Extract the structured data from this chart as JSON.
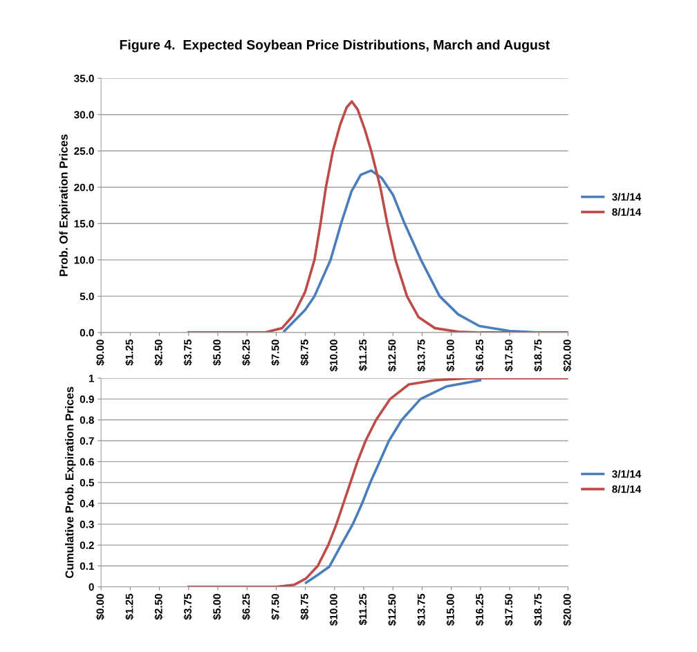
{
  "chart_data": [
    {
      "type": "line",
      "title": "Figure 4.  Expected Soybean Price Distributions, March and August",
      "ylabel": "Prob. Of Expiration Prices",
      "xlim": [
        0,
        20
      ],
      "xticks": [
        {
          "value": 0,
          "label": "$0.00"
        },
        {
          "value": 1.25,
          "label": "$1.25"
        },
        {
          "value": 2.5,
          "label": "$2.50"
        },
        {
          "value": 3.75,
          "label": "$3.75"
        },
        {
          "value": 5,
          "label": "$5.00"
        },
        {
          "value": 6.25,
          "label": "$6.25"
        },
        {
          "value": 7.5,
          "label": "$7.50"
        },
        {
          "value": 8.75,
          "label": "$8.75"
        },
        {
          "value": 10,
          "label": "$10.00"
        },
        {
          "value": 11.25,
          "label": "$11.25"
        },
        {
          "value": 12.5,
          "label": "$12.50"
        },
        {
          "value": 13.75,
          "label": "$13.75"
        },
        {
          "value": 15,
          "label": "$15.00"
        },
        {
          "value": 16.25,
          "label": "$16.25"
        },
        {
          "value": 17.5,
          "label": "$17.50"
        },
        {
          "value": 18.75,
          "label": "$18.75"
        },
        {
          "value": 20,
          "label": "$20.00"
        }
      ],
      "ylim": [
        0,
        35
      ],
      "yticks": [
        {
          "value": 0,
          "label": "0.0"
        },
        {
          "value": 5,
          "label": "5.0"
        },
        {
          "value": 10,
          "label": "10.0"
        },
        {
          "value": 15,
          "label": "15.0"
        },
        {
          "value": 20,
          "label": "20.0"
        },
        {
          "value": 25,
          "label": "25.0"
        },
        {
          "value": 30,
          "label": "30.0"
        },
        {
          "value": 35,
          "label": "35.0"
        }
      ],
      "grid": "y",
      "legend": "right",
      "marker": "none",
      "line_style": "solid",
      "series": [
        {
          "name": "3/1/14",
          "color": "#4a7ebb",
          "x": [
            7.85,
            8.74,
            9.14,
            9.83,
            10.28,
            10.72,
            11.12,
            11.57,
            12.01,
            12.51,
            13.0,
            13.7,
            14.5,
            15.29,
            16.2,
            17.5,
            18.75,
            20
          ],
          "values": [
            0.2,
            3.1,
            5,
            10,
            15,
            19.4,
            21.7,
            22.3,
            21.3,
            18.9,
            15,
            10,
            5,
            2.5,
            0.9,
            0.2,
            0,
            0
          ]
        },
        {
          "name": "8/1/14",
          "color": "#be4b48",
          "x": [
            3.75,
            5,
            6.25,
            7.0,
            7.75,
            8.24,
            8.74,
            9.14,
            9.4,
            9.63,
            9.93,
            10.23,
            10.52,
            10.74,
            10.99,
            11.3,
            11.57,
            11.96,
            12.26,
            12.61,
            13.1,
            13.6,
            14.3,
            15.29,
            16.25,
            20
          ],
          "values": [
            0,
            0,
            0,
            0,
            0.6,
            2.4,
            5.6,
            10,
            15,
            20,
            25,
            28.5,
            31,
            31.8,
            30.7,
            27.9,
            25,
            20,
            15,
            10,
            5,
            2.1,
            0.6,
            0.1,
            0,
            0
          ]
        }
      ]
    },
    {
      "type": "line",
      "ylabel": "Cumulative Prob. Expiration Prices",
      "xlim": [
        0,
        20
      ],
      "xticks": [
        {
          "value": 0,
          "label": "$0.00"
        },
        {
          "value": 1.25,
          "label": "$1.25"
        },
        {
          "value": 2.5,
          "label": "$2.50"
        },
        {
          "value": 3.75,
          "label": "$3.75"
        },
        {
          "value": 5,
          "label": "$5.00"
        },
        {
          "value": 6.25,
          "label": "$6.25"
        },
        {
          "value": 7.5,
          "label": "$7.50"
        },
        {
          "value": 8.75,
          "label": "$8.75"
        },
        {
          "value": 10,
          "label": "$10.00"
        },
        {
          "value": 11.25,
          "label": "$11.25"
        },
        {
          "value": 12.5,
          "label": "$12.50"
        },
        {
          "value": 13.75,
          "label": "$13.75"
        },
        {
          "value": 15,
          "label": "$15.00"
        },
        {
          "value": 16.25,
          "label": "$16.25"
        },
        {
          "value": 17.5,
          "label": "$17.50"
        },
        {
          "value": 18.75,
          "label": "$18.75"
        },
        {
          "value": 20,
          "label": "$20.00"
        }
      ],
      "ylim": [
        0,
        1
      ],
      "yticks": [
        0,
        0.1,
        0.2,
        0.3,
        0.4,
        0.5,
        0.6,
        0.7,
        0.8,
        0.9,
        1
      ],
      "grid": "y",
      "legend": "right",
      "marker": "none",
      "line_style": "solid",
      "series": [
        {
          "name": "3/1/14",
          "color": "#4a7ebb",
          "x": [
            8.78,
            9.28,
            9.78,
            10.28,
            10.78,
            11.18,
            11.53,
            11.93,
            12.33,
            12.88,
            13.68,
            14.78,
            16.23
          ],
          "values": [
            0.02,
            0.057,
            0.097,
            0.2,
            0.3,
            0.4,
            0.5,
            0.6,
            0.7,
            0.8,
            0.9,
            0.96,
            0.99
          ]
        },
        {
          "name": "8/1/14",
          "color": "#be4b48",
          "x": [
            3.75,
            5,
            6.25,
            7.5,
            8.28,
            8.78,
            9.28,
            9.73,
            10.08,
            10.38,
            10.68,
            10.98,
            11.33,
            11.78,
            12.38,
            13.18,
            14.28,
            15.78,
            20
          ],
          "values": [
            0,
            0,
            0,
            0,
            0.01,
            0.04,
            0.1,
            0.2,
            0.3,
            0.4,
            0.5,
            0.6,
            0.7,
            0.8,
            0.9,
            0.97,
            0.99,
            1,
            1
          ]
        }
      ]
    }
  ]
}
